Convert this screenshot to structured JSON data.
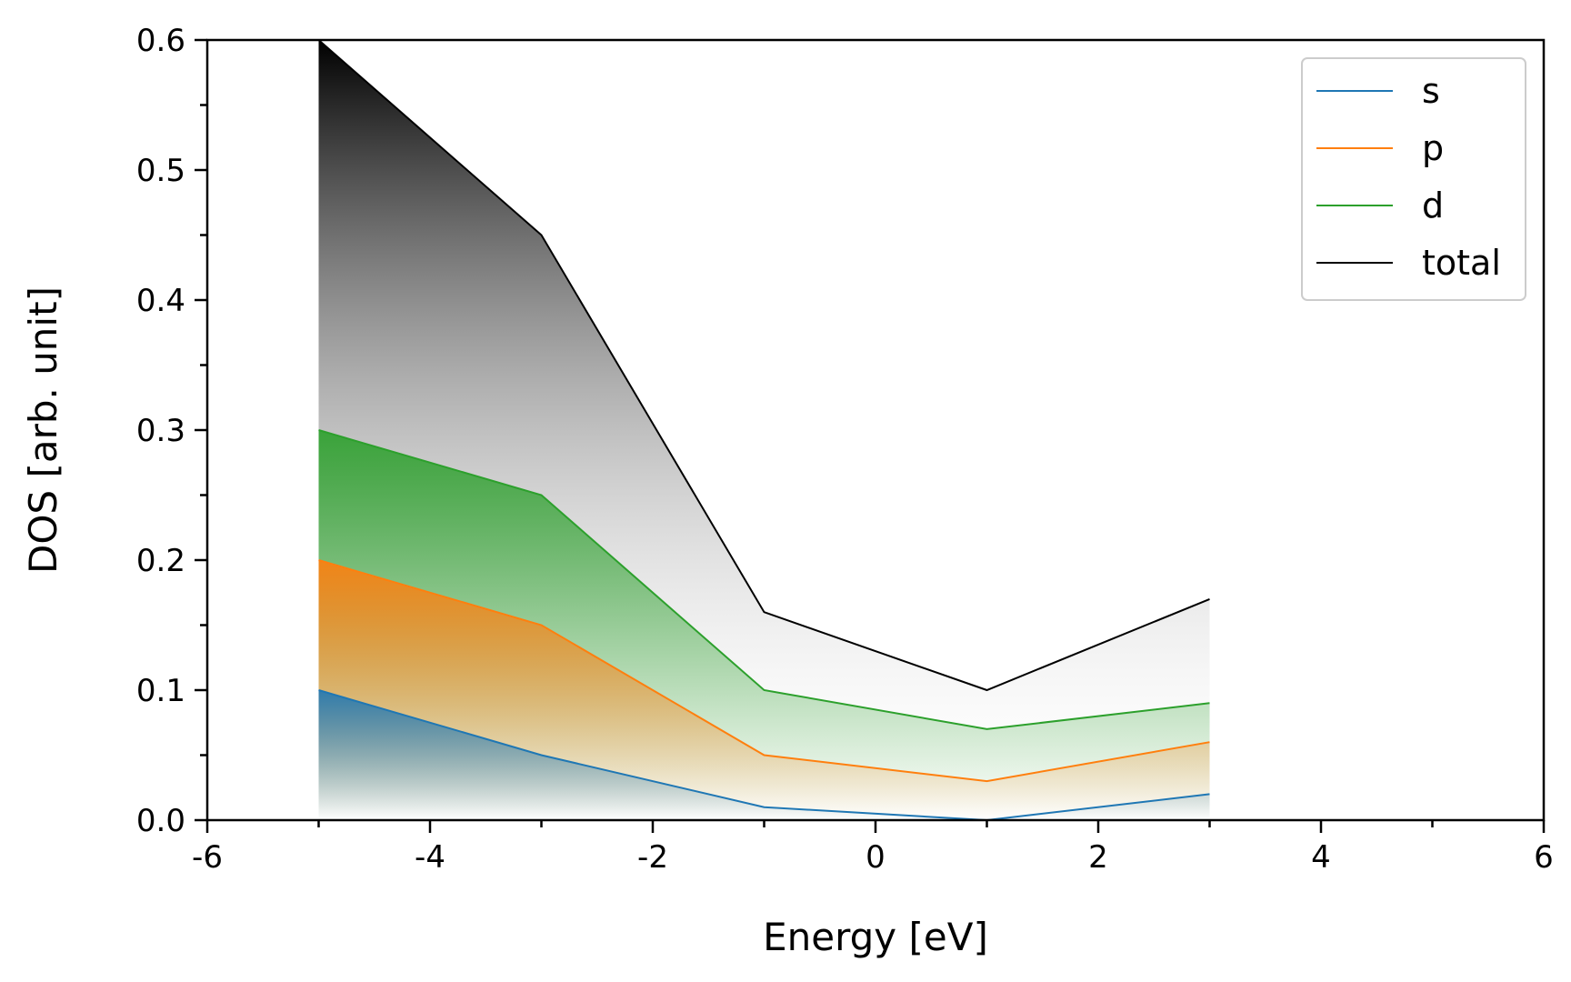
{
  "chart_data": {
    "type": "area",
    "title": "",
    "xlabel": "Energy [eV]",
    "ylabel": "DOS [arb. unit]",
    "xlim": [
      -6,
      6
    ],
    "ylim": [
      0,
      0.6
    ],
    "xticks": [
      -6,
      -4,
      -2,
      0,
      2,
      4,
      6
    ],
    "xtick_labels": [
      "-6",
      "-4",
      "-2",
      "0",
      "2",
      "4",
      "6"
    ],
    "yticks": [
      0.0,
      0.1,
      0.2,
      0.3,
      0.4,
      0.5,
      0.6
    ],
    "ytick_labels": [
      "0.0",
      "0.1",
      "0.2",
      "0.3",
      "0.4",
      "0.5",
      "0.6"
    ],
    "grid": false,
    "legend": "top-right",
    "x": [
      -5,
      -3,
      -1,
      1,
      3
    ],
    "series": [
      {
        "name": "s",
        "color": "#1f77b4",
        "values": [
          0.1,
          0.05,
          0.01,
          0.0,
          0.02
        ]
      },
      {
        "name": "p",
        "color": "#ff7f0e",
        "values": [
          0.2,
          0.15,
          0.05,
          0.03,
          0.06
        ]
      },
      {
        "name": "d",
        "color": "#2ca02c",
        "values": [
          0.3,
          0.25,
          0.1,
          0.07,
          0.09
        ]
      },
      {
        "name": "total",
        "color": "#000000",
        "values": [
          0.6,
          0.45,
          0.16,
          0.1,
          0.17
        ]
      }
    ]
  }
}
